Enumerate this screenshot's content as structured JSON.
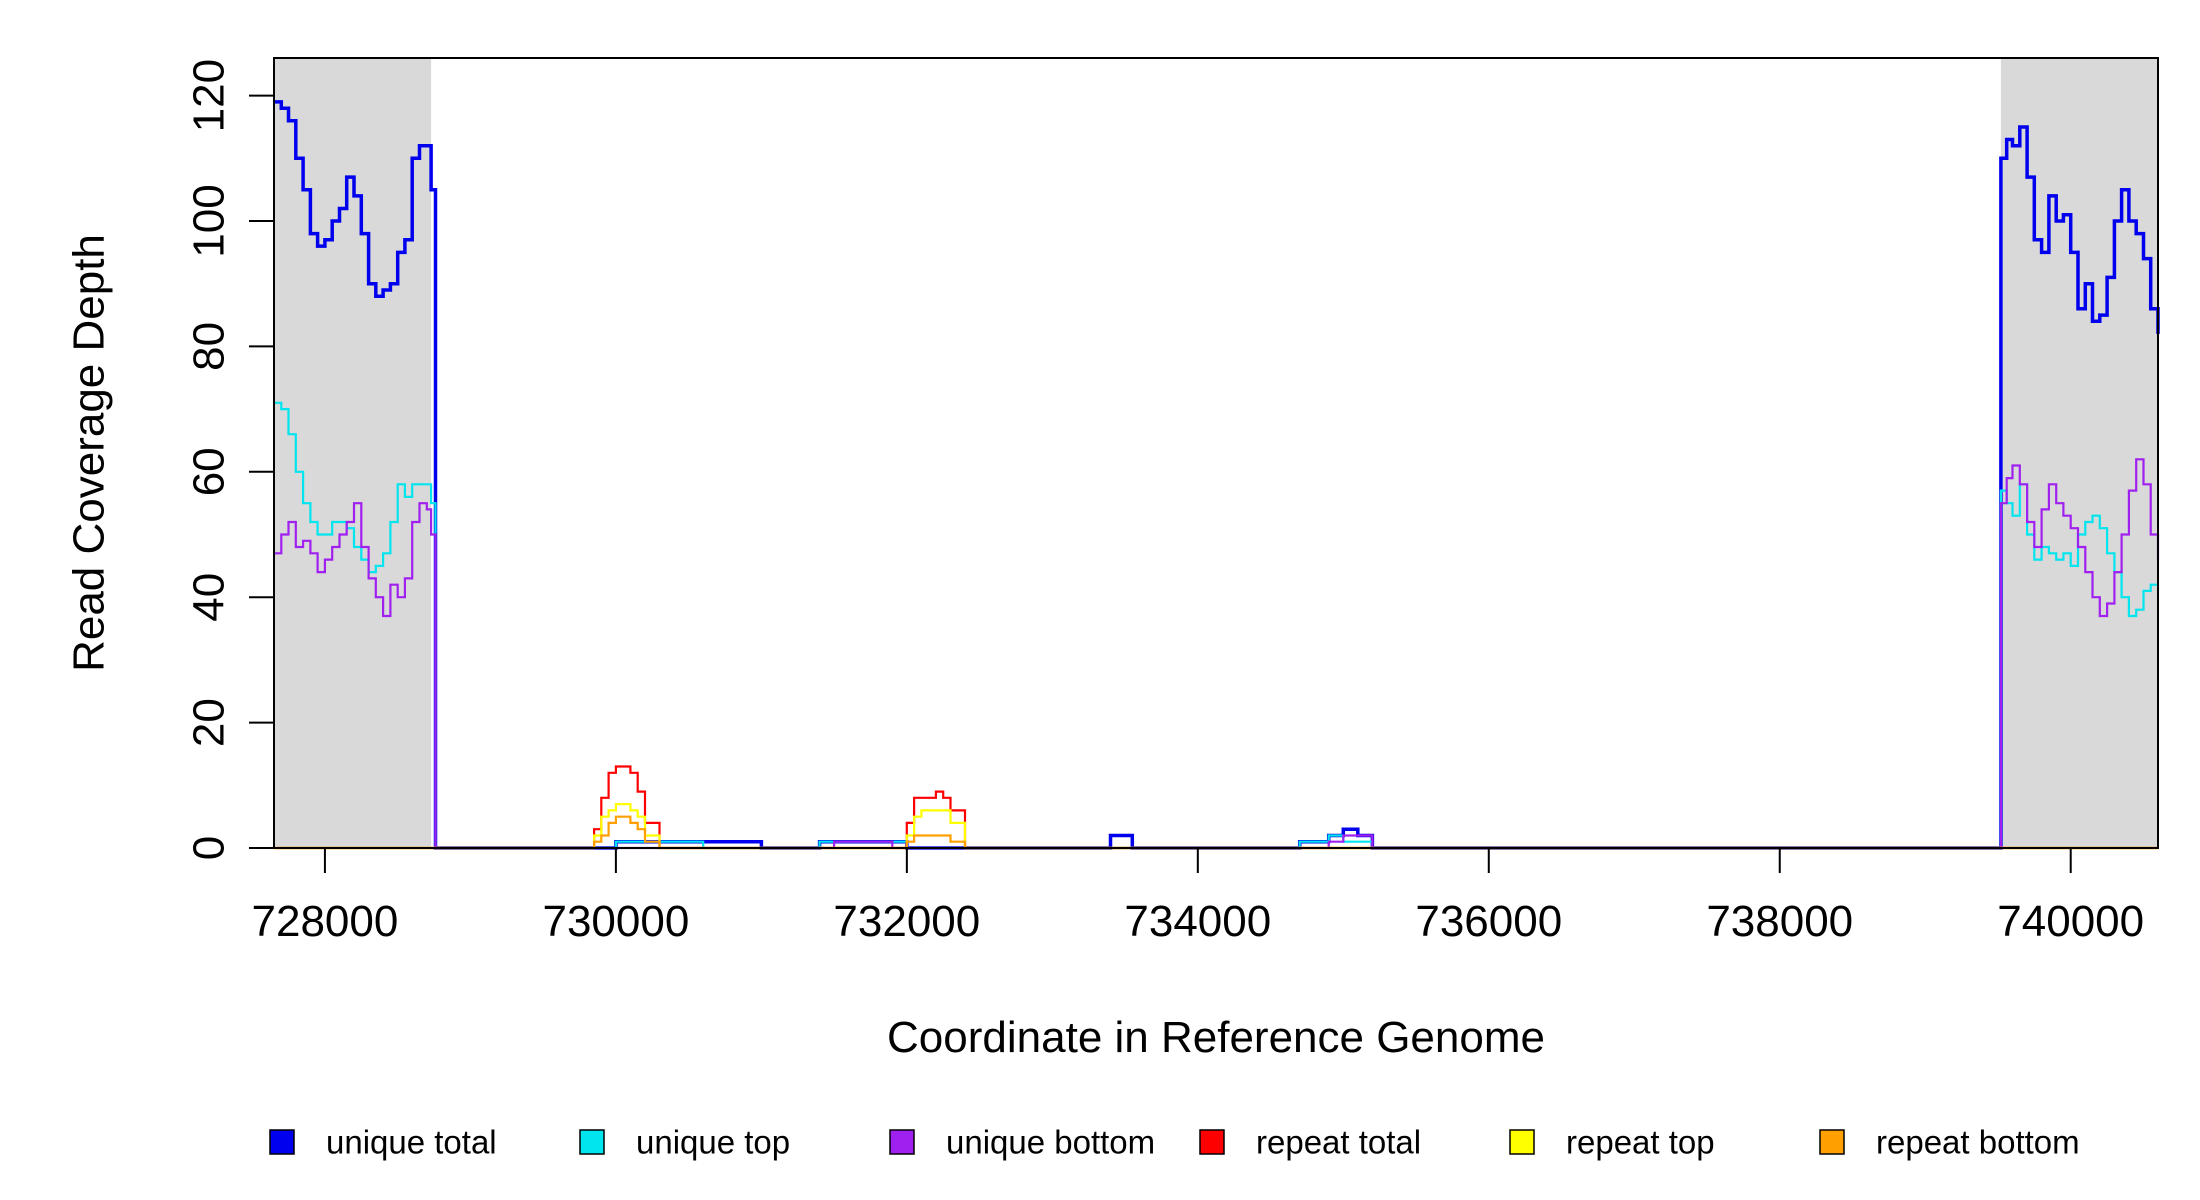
{
  "chart_data": {
    "type": "line",
    "title": "",
    "xlabel": "Coordinate in Reference Genome",
    "ylabel": "Read Coverage Depth",
    "xlim": [
      727650,
      740600
    ],
    "ylim": [
      0,
      126
    ],
    "x_ticks": [
      728000,
      730000,
      732000,
      734000,
      736000,
      738000,
      740000
    ],
    "x_tick_labels": [
      "728000",
      "730000",
      "732000",
      "734000",
      "736000",
      "738000",
      "740000"
    ],
    "y_ticks": [
      0,
      20,
      40,
      60,
      80,
      100,
      120
    ],
    "y_tick_labels": [
      "0",
      "20",
      "40",
      "60",
      "80",
      "100",
      "120"
    ],
    "grid": false,
    "legend_position": "bottom",
    "shaded_regions": [
      {
        "x0": 727650,
        "x1": 728730,
        "color": "#d9d9d9"
      },
      {
        "x0": 739520,
        "x1": 740600,
        "color": "#d9d9d9"
      }
    ],
    "series": [
      {
        "name": "unique total",
        "color": "#0000ee",
        "x": [
          727650,
          727700,
          727750,
          727800,
          727850,
          727900,
          727950,
          728000,
          728050,
          728100,
          728150,
          728200,
          728250,
          728300,
          728350,
          728400,
          728450,
          728500,
          728550,
          728600,
          728650,
          728700,
          728730,
          728760,
          729000,
          729500,
          729800,
          730000,
          730200,
          730600,
          731000,
          731400,
          731700,
          732000,
          732300,
          733000,
          733400,
          733450,
          733500,
          733550,
          734000,
          734700,
          734900,
          735000,
          735100,
          735200,
          736000,
          737000,
          738000,
          739000,
          739500,
          739520,
          739560,
          739600,
          739650,
          739700,
          739750,
          739800,
          739850,
          739900,
          739950,
          740000,
          740050,
          740100,
          740150,
          740200,
          740250,
          740300,
          740350,
          740400,
          740450,
          740500,
          740550,
          740600
        ],
        "y": [
          119,
          118,
          116,
          110,
          105,
          98,
          96,
          97,
          100,
          102,
          107,
          104,
          98,
          90,
          88,
          89,
          90,
          95,
          97,
          110,
          112,
          112,
          105,
          0,
          0,
          0,
          0,
          1,
          1,
          1,
          0,
          1,
          1,
          0,
          0,
          0,
          2,
          2,
          2,
          0,
          0,
          1,
          2,
          3,
          2,
          0,
          0,
          0,
          0,
          0,
          0,
          110,
          113,
          112,
          115,
          107,
          97,
          95,
          104,
          100,
          101,
          95,
          86,
          90,
          84,
          85,
          91,
          100,
          105,
          100,
          98,
          94,
          86,
          82
        ]
      },
      {
        "name": "unique top",
        "color": "#00e5ee",
        "x": [
          727650,
          727700,
          727750,
          727800,
          727850,
          727900,
          727950,
          728000,
          728050,
          728100,
          728150,
          728200,
          728250,
          728300,
          728350,
          728400,
          728450,
          728500,
          728550,
          728600,
          728650,
          728700,
          728730,
          728760,
          729000,
          729900,
          730000,
          730100,
          730400,
          730600,
          731400,
          731700,
          732000,
          733400,
          733500,
          734700,
          734900,
          735000,
          735100,
          735200,
          736000,
          738000,
          739500,
          739520,
          739560,
          739600,
          739650,
          739700,
          739750,
          739800,
          739850,
          739900,
          739950,
          740000,
          740050,
          740100,
          740150,
          740200,
          740250,
          740300,
          740350,
          740400,
          740450,
          740500,
          740550,
          740600
        ],
        "y": [
          71,
          70,
          66,
          60,
          55,
          52,
          50,
          50,
          52,
          52,
          51,
          48,
          46,
          44,
          45,
          47,
          52,
          58,
          56,
          58,
          58,
          58,
          55,
          0,
          0,
          0,
          1,
          1,
          1,
          0,
          1,
          1,
          0,
          0,
          0,
          1,
          2,
          1,
          1,
          0,
          0,
          0,
          0,
          57,
          55,
          53,
          58,
          50,
          46,
          48,
          47,
          46,
          47,
          45,
          50,
          52,
          53,
          51,
          47,
          44,
          40,
          37,
          38,
          41,
          42,
          42
        ]
      },
      {
        "name": "unique bottom",
        "color": "#a020f0",
        "x": [
          727650,
          727700,
          727750,
          727800,
          727850,
          727900,
          727950,
          728000,
          728050,
          728100,
          728150,
          728200,
          728250,
          728300,
          728350,
          728400,
          728450,
          728500,
          728550,
          728600,
          728650,
          728700,
          728730,
          728760,
          729000,
          730000,
          731000,
          731500,
          731600,
          731800,
          731900,
          733400,
          733500,
          734800,
          734900,
          735000,
          735100,
          735200,
          736000,
          738000,
          739500,
          739520,
          739560,
          739600,
          739650,
          739700,
          739750,
          739800,
          739850,
          739900,
          739950,
          740000,
          740050,
          740100,
          740150,
          740200,
          740250,
          740300,
          740350,
          740400,
          740450,
          740500,
          740550,
          740600
        ],
        "y": [
          47,
          50,
          52,
          48,
          49,
          47,
          44,
          46,
          48,
          50,
          52,
          55,
          48,
          43,
          40,
          37,
          42,
          40,
          43,
          52,
          55,
          54,
          50,
          0,
          0,
          0,
          0,
          1,
          1,
          1,
          0,
          0,
          0,
          0,
          1,
          2,
          2,
          0,
          0,
          0,
          0,
          55,
          59,
          61,
          58,
          52,
          48,
          54,
          58,
          55,
          53,
          51,
          48,
          44,
          40,
          37,
          39,
          44,
          50,
          57,
          62,
          58,
          50,
          46
        ]
      },
      {
        "name": "repeat total",
        "color": "#ff0000",
        "x": [
          727650,
          728730,
          729800,
          729850,
          729900,
          729950,
          730000,
          730050,
          730100,
          730150,
          730200,
          730300,
          731900,
          732000,
          732050,
          732100,
          732150,
          732200,
          732250,
          732300,
          732400,
          733000,
          740600
        ],
        "y": [
          0,
          0,
          0,
          3,
          8,
          12,
          13,
          13,
          12,
          9,
          4,
          0,
          0,
          4,
          8,
          8,
          8,
          9,
          8,
          6,
          0,
          0,
          0
        ]
      },
      {
        "name": "repeat top",
        "color": "#ffff00",
        "x": [
          727650,
          728730,
          729800,
          729850,
          729900,
          729950,
          730000,
          730050,
          730100,
          730150,
          730200,
          730300,
          731900,
          732000,
          732050,
          732100,
          732150,
          732200,
          732250,
          732300,
          732400,
          733000,
          740600
        ],
        "y": [
          0,
          0,
          0,
          2,
          5,
          6,
          7,
          7,
          6,
          5,
          2,
          0,
          0,
          2,
          5,
          6,
          6,
          6,
          6,
          4,
          0,
          0,
          0
        ]
      },
      {
        "name": "repeat bottom",
        "color": "#ff9f00",
        "x": [
          727650,
          728730,
          729800,
          729850,
          729900,
          729950,
          730000,
          730050,
          730100,
          730150,
          730200,
          730300,
          730400,
          730600,
          731900,
          732000,
          732050,
          732100,
          732200,
          732300,
          732400,
          733000,
          740600
        ],
        "y": [
          0,
          0,
          0,
          1,
          2,
          4,
          5,
          5,
          4,
          3,
          1,
          0,
          0,
          0,
          0,
          1,
          2,
          2,
          2,
          1,
          0,
          0,
          0
        ]
      }
    ]
  }
}
